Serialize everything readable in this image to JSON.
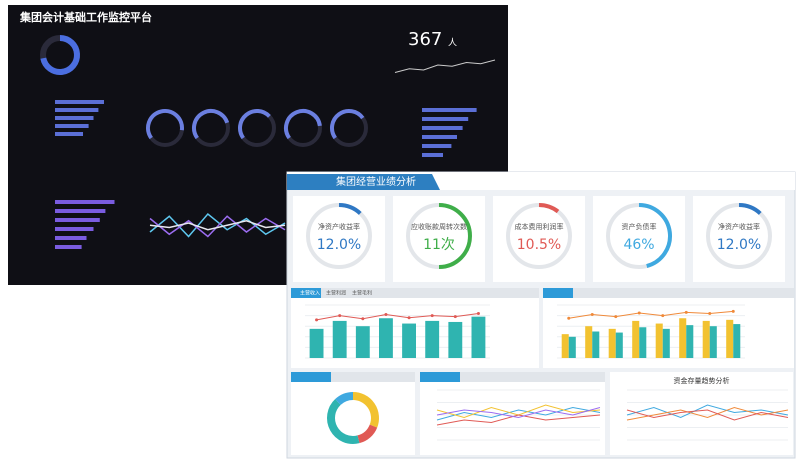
{
  "back": {
    "title": "集团会计基础工作监控平台",
    "headcount": {
      "value": 367,
      "unit": "人"
    },
    "donut": 72,
    "gauges": [
      62,
      55,
      48,
      58,
      50
    ],
    "bars_a": [
      70,
      62,
      55,
      48,
      40
    ],
    "bars_b": [
      78,
      66,
      58,
      50,
      42,
      30
    ],
    "bars_c": [
      85,
      72,
      64,
      55,
      45,
      38
    ],
    "trend": [
      {
        "color": "#5ec8f0",
        "values": [
          40,
          75,
          30,
          80,
          45,
          70,
          35,
          60
        ]
      },
      {
        "color": "#9b6cf0",
        "values": [
          70,
          35,
          65,
          30,
          75,
          40,
          70,
          45
        ]
      },
      {
        "color": "#e8e8f0",
        "values": [
          55,
          50,
          60,
          45,
          55,
          65,
          50,
          55
        ]
      }
    ],
    "spark": [
      30,
      45,
      40,
      60,
      55,
      70,
      65,
      80
    ]
  },
  "front": {
    "title": "集团经营业绩分析",
    "kpis": [
      {
        "label": "净资产收益率",
        "value": {
          "value": 12.0,
          "label": "12.0%"
        },
        "arc": 12,
        "color": "#2f78c4"
      },
      {
        "label": "应收账款周转次数",
        "value": {
          "value": 11,
          "label": "11次"
        },
        "arc": 50,
        "color": "#3fae49"
      },
      {
        "label": "成本费用利润率",
        "value": {
          "value": 10.5,
          "label": "10.5%"
        },
        "arc": 10.5,
        "color": "#e05a55"
      },
      {
        "label": "资产负债率",
        "value": {
          "value": 46,
          "label": "46%"
        },
        "arc": 46,
        "color": "#3fa9e0"
      },
      {
        "label": "净资产收益率",
        "value": {
          "value": 12.0,
          "label": "12.0%"
        },
        "arc": 12,
        "color": "#2f78c4"
      }
    ],
    "tabs_left": [
      "主营收入",
      "主营利润",
      "主营毛利"
    ],
    "combo_left": {
      "ylim": [
        0,
        100
      ],
      "yticks": [
        0,
        20,
        40,
        60,
        80,
        100
      ],
      "bars": [
        {
          "color": "#2fb4b0",
          "values": [
            55,
            70,
            60,
            75,
            65,
            70,
            68,
            78
          ]
        }
      ],
      "line": {
        "color": "#e05a55",
        "values": [
          72,
          80,
          74,
          82,
          76,
          80,
          78,
          84
        ]
      }
    },
    "combo_right": {
      "ylim": [
        0,
        100
      ],
      "yticks": [
        0,
        20,
        40,
        60,
        80,
        100
      ],
      "bars": [
        {
          "color": "#f2c230",
          "values": [
            45,
            60,
            55,
            70,
            65,
            75,
            70,
            72
          ]
        },
        {
          "color": "#2fb4b0",
          "values": [
            40,
            50,
            48,
            58,
            55,
            62,
            60,
            64
          ]
        }
      ],
      "line": {
        "color": "#f08a3a",
        "values": [
          75,
          82,
          78,
          85,
          80,
          86,
          84,
          88
        ]
      }
    },
    "donut": [
      {
        "color": "#f2c230",
        "value": 31
      },
      {
        "color": "#e05a55",
        "value": 15
      },
      {
        "color": "#2fb4b0",
        "value": 42
      },
      {
        "color": "#3fa9e0",
        "value": 12
      }
    ],
    "trend_mid": {
      "ylim": [
        0,
        100
      ],
      "yticks": [
        0,
        25,
        50,
        75,
        100
      ],
      "series": [
        {
          "color": "#3fa9e0",
          "values": [
            40,
            55,
            45,
            60,
            50,
            65,
            55
          ]
        },
        {
          "color": "#f2c230",
          "values": [
            60,
            45,
            65,
            50,
            70,
            55,
            60
          ]
        },
        {
          "color": "#e05a55",
          "values": [
            30,
            40,
            35,
            50,
            40,
            45,
            50
          ]
        },
        {
          "color": "#9b6cf0",
          "values": [
            50,
            60,
            55,
            45,
            60,
            50,
            65
          ]
        }
      ]
    },
    "trend_right_title": "资金存量趋势分析",
    "trend_right": {
      "ylim": [
        0,
        100
      ],
      "yticks": [
        0,
        25,
        50,
        75,
        100
      ],
      "series": [
        {
          "color": "#3fa9e0",
          "values": [
            50,
            65,
            45,
            70,
            55,
            60,
            50
          ]
        },
        {
          "color": "#f08a3a",
          "values": [
            40,
            50,
            60,
            45,
            65,
            50,
            60
          ]
        },
        {
          "color": "#e05a55",
          "values": [
            60,
            45,
            55,
            60,
            40,
            55,
            45
          ]
        }
      ]
    }
  }
}
